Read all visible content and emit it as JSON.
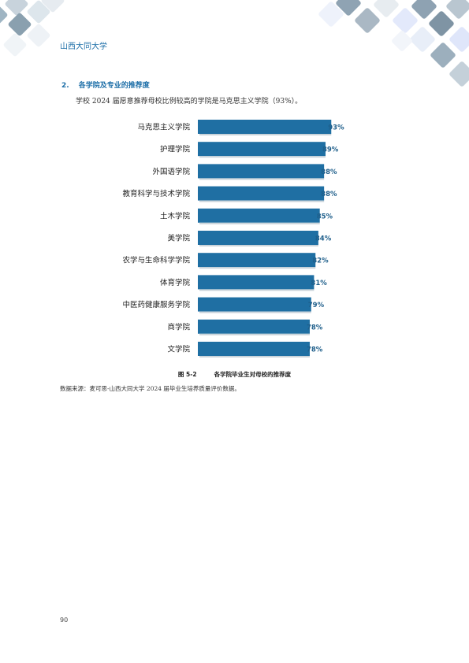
{
  "header": {
    "university_name": "山西大同大学"
  },
  "section": {
    "number": "2.",
    "title": "各学院及专业的推荐度",
    "body": "学校 2024 届愿意推荐母校比例较高的学院是马克思主义学院（93%）。"
  },
  "chart_data": {
    "type": "bar",
    "orientation": "horizontal",
    "categories": [
      "马克思主义学院",
      "护理学院",
      "外国语学院",
      "教育科学与技术学院",
      "土木学院",
      "美学院",
      "农学与生命科学学院",
      "体育学院",
      "中医药健康服务学院",
      "商学院",
      "文学院"
    ],
    "values": [
      93,
      89,
      88,
      88,
      85,
      84,
      82,
      81,
      79,
      78,
      78
    ],
    "value_labels": [
      "93%",
      "89%",
      "88%",
      "88%",
      "85%",
      "84%",
      "82%",
      "81%",
      "79%",
      "78%",
      "78%"
    ],
    "xlim": [
      0,
      100
    ],
    "bar_color": "#1f6fa3",
    "label_color": "#1f5f8b",
    "grid": false
  },
  "figure": {
    "number": "图 5-2",
    "caption": "各学院毕业生对母校的推荐度"
  },
  "source_note": "数据来源：麦可思-山西大同大学 2024 届毕业生培养质量评价数据。",
  "page_number": "90"
}
